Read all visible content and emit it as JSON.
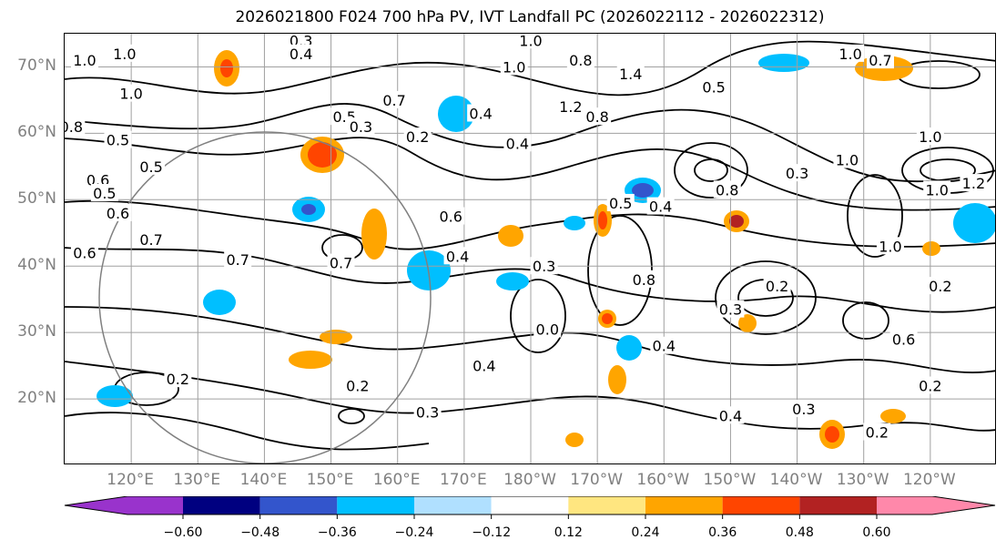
{
  "title": "2026021800 F024 700 hPa PV, IVT Landfall PC (2026022112 - 2026022312)",
  "map": {
    "lon_range": [
      110,
      250
    ],
    "lat_range": [
      10,
      75
    ],
    "lat_labels": [
      "70°N",
      "60°N",
      "50°N",
      "40°N",
      "30°N",
      "20°N"
    ],
    "lat_values": [
      70,
      60,
      50,
      40,
      30,
      20
    ],
    "lon_labels": [
      "120°E",
      "130°E",
      "140°E",
      "150°E",
      "160°E",
      "170°E",
      "180°W",
      "170°W",
      "160°W",
      "150°W",
      "140°W",
      "130°W",
      "120°W"
    ],
    "lon_values": [
      120,
      130,
      140,
      150,
      160,
      170,
      180,
      190,
      200,
      210,
      220,
      230,
      240
    ],
    "gridline_color": "#a0a0a0",
    "circle_color": "#808080",
    "contour_labels": [
      {
        "text": "1.0",
        "lon": 113,
        "lat": 71
      },
      {
        "text": "1.0",
        "lon": 119,
        "lat": 72
      },
      {
        "text": "1.0",
        "lon": 120,
        "lat": 66
      },
      {
        "text": "0.3",
        "lon": 145.5,
        "lat": 74
      },
      {
        "text": "0.4",
        "lon": 145.5,
        "lat": 72
      },
      {
        "text": "1.0",
        "lon": 180,
        "lat": 74
      },
      {
        "text": "1.0",
        "lon": 177.5,
        "lat": 70
      },
      {
        "text": "0.8",
        "lon": 187.5,
        "lat": 71
      },
      {
        "text": "1.4",
        "lon": 195,
        "lat": 69
      },
      {
        "text": "1.2",
        "lon": 186,
        "lat": 64
      },
      {
        "text": "0.8",
        "lon": 190,
        "lat": 62.5
      },
      {
        "text": "0.5",
        "lon": 207.5,
        "lat": 67
      },
      {
        "text": "1.0",
        "lon": 228,
        "lat": 72
      },
      {
        "text": "0.7",
        "lon": 232.5,
        "lat": 71
      },
      {
        "text": "0.8",
        "lon": 111,
        "lat": 61
      },
      {
        "text": "0.5",
        "lon": 118,
        "lat": 59
      },
      {
        "text": "0.5",
        "lon": 123,
        "lat": 55
      },
      {
        "text": "0.6",
        "lon": 115,
        "lat": 53
      },
      {
        "text": "0.5",
        "lon": 116,
        "lat": 51
      },
      {
        "text": "0.6",
        "lon": 118,
        "lat": 48
      },
      {
        "text": "0.7",
        "lon": 123,
        "lat": 44
      },
      {
        "text": "0.6",
        "lon": 113,
        "lat": 42
      },
      {
        "text": "0.7",
        "lon": 159.5,
        "lat": 65
      },
      {
        "text": "0.5",
        "lon": 152,
        "lat": 62.5
      },
      {
        "text": "0.3",
        "lon": 154.5,
        "lat": 61
      },
      {
        "text": "0.2",
        "lon": 163,
        "lat": 59.5
      },
      {
        "text": "0.4",
        "lon": 172.5,
        "lat": 63
      },
      {
        "text": "0.4",
        "lon": 178,
        "lat": 58.5
      },
      {
        "text": "0.6",
        "lon": 168,
        "lat": 47.5
      },
      {
        "text": "0.4",
        "lon": 169,
        "lat": 41.5
      },
      {
        "text": "0.7",
        "lon": 136,
        "lat": 41
      },
      {
        "text": "0.7",
        "lon": 151.5,
        "lat": 40.5
      },
      {
        "text": "0.5",
        "lon": 193.5,
        "lat": 49.5
      },
      {
        "text": "0.4",
        "lon": 199.5,
        "lat": 49
      },
      {
        "text": "0.8",
        "lon": 209.5,
        "lat": 51.5
      },
      {
        "text": "0.3",
        "lon": 220,
        "lat": 54
      },
      {
        "text": "1.0",
        "lon": 227.5,
        "lat": 56
      },
      {
        "text": "1.0",
        "lon": 240,
        "lat": 59.5
      },
      {
        "text": "1.0",
        "lon": 241,
        "lat": 51.5
      },
      {
        "text": "1.2",
        "lon": 246.5,
        "lat": 52.5
      },
      {
        "text": "1.0",
        "lon": 234,
        "lat": 43
      },
      {
        "text": "0.3",
        "lon": 182,
        "lat": 40
      },
      {
        "text": "0.8",
        "lon": 197,
        "lat": 38
      },
      {
        "text": "0.2",
        "lon": 217,
        "lat": 37
      },
      {
        "text": "0.2",
        "lon": 241.5,
        "lat": 37
      },
      {
        "text": "0.3",
        "lon": 210,
        "lat": 33.5
      },
      {
        "text": "0.0",
        "lon": 182.5,
        "lat": 30.5
      },
      {
        "text": "0.4",
        "lon": 200,
        "lat": 28
      },
      {
        "text": "0.6",
        "lon": 236,
        "lat": 29
      },
      {
        "text": "0.4",
        "lon": 173,
        "lat": 25
      },
      {
        "text": "0.2",
        "lon": 127,
        "lat": 23
      },
      {
        "text": "0.2",
        "lon": 240,
        "lat": 22
      },
      {
        "text": "0.2",
        "lon": 154,
        "lat": 22
      },
      {
        "text": "0.3",
        "lon": 164.5,
        "lat": 18
      },
      {
        "text": "0.4",
        "lon": 210,
        "lat": 17.5
      },
      {
        "text": "0.3",
        "lon": 221,
        "lat": 18.5
      },
      {
        "text": "0.2",
        "lon": 232,
        "lat": 15
      }
    ]
  },
  "colorbar": {
    "colors": [
      "#9933cc",
      "#000080",
      "#3355cc",
      "#00bfff",
      "#b0e0ff",
      "#ffffff",
      "#ffe680",
      "#ffa500",
      "#ff4500",
      "#b22222",
      "#ff88aa"
    ],
    "tick_labels": [
      "−0.60",
      "−0.48",
      "−0.36",
      "−0.24",
      "−0.12",
      "0.12",
      "0.24",
      "0.36",
      "0.48",
      "0.60"
    ],
    "levels": [
      -0.6,
      -0.48,
      -0.36,
      -0.24,
      -0.12,
      0.12,
      0.24,
      0.36,
      0.48,
      0.6
    ]
  }
}
